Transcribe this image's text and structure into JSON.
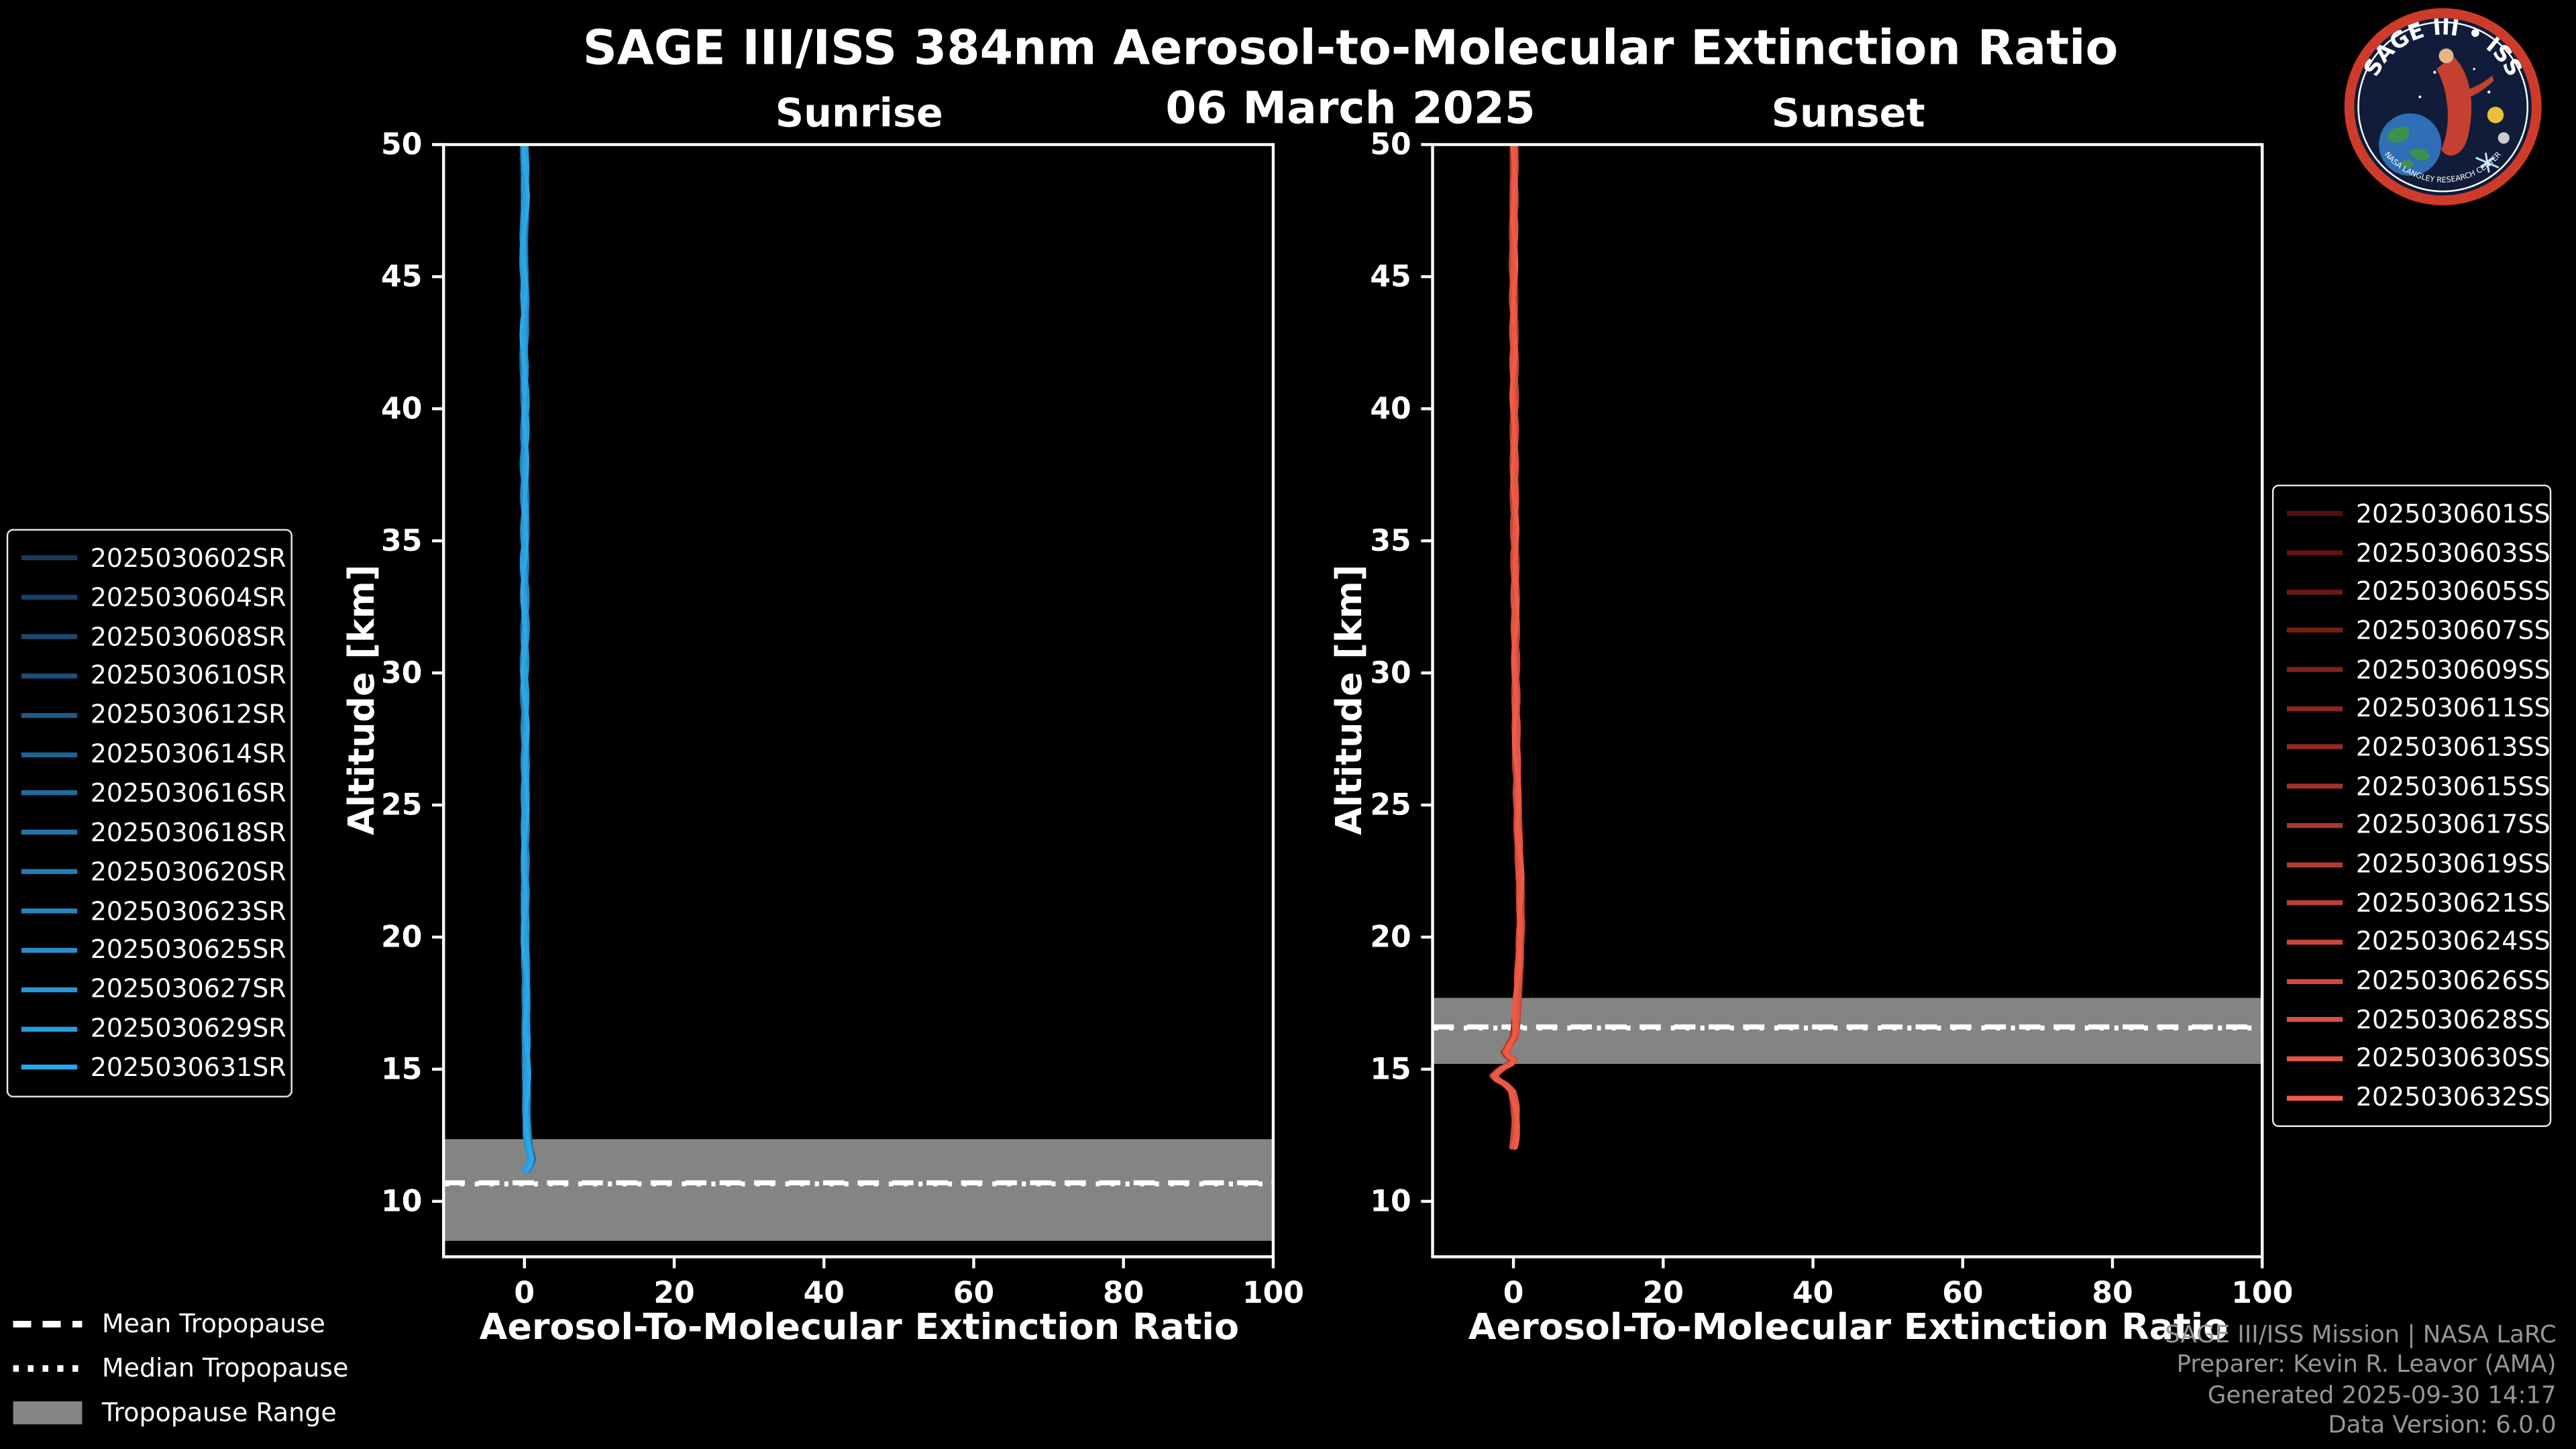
{
  "header": {
    "title": "SAGE III/ISS 384nm Aerosol-to-Molecular Extinction Ratio",
    "date": "06 March 2025"
  },
  "logo": {
    "top_text": "SAGE III • ISS",
    "ring_text": "NASA LANGLEY RESEARCH CENTER"
  },
  "colors": {
    "background": "#000000",
    "foreground": "#ffffff",
    "band": "#848484",
    "credits_text": "#969696",
    "sunrise_accent": "#2aa7e8",
    "sunset_accent": "#ef5a47"
  },
  "chart_data": [
    {
      "type": "line",
      "panel_title": "Sunrise",
      "xlabel": "Aerosol-To-Molecular Extinction Ratio",
      "ylabel": "Altitude [km]",
      "xlim": [
        -10.8,
        100
      ],
      "ylim": [
        7.9,
        50
      ],
      "xticks": [
        0,
        20,
        40,
        60,
        80,
        100
      ],
      "yticks": [
        10,
        15,
        20,
        25,
        30,
        35,
        40,
        45,
        50
      ],
      "grid": false,
      "legend_position": "left-outside",
      "series": [
        {
          "name": "2025030602SR",
          "color": "#17395c"
        },
        {
          "name": "2025030604SR",
          "color": "#194166"
        },
        {
          "name": "2025030608SR",
          "color": "#1a4a72"
        },
        {
          "name": "2025030610SR",
          "color": "#1b527c"
        },
        {
          "name": "2025030612SR",
          "color": "#1d5b87"
        },
        {
          "name": "2025030614SR",
          "color": "#1e6392"
        },
        {
          "name": "2025030616SR",
          "color": "#206c9d"
        },
        {
          "name": "2025030618SR",
          "color": "#2174a7"
        },
        {
          "name": "2025030620SR",
          "color": "#237db2"
        },
        {
          "name": "2025030623SR",
          "color": "#2485bd"
        },
        {
          "name": "2025030625SR",
          "color": "#268ec8"
        },
        {
          "name": "2025030627SR",
          "color": "#2796d2"
        },
        {
          "name": "2025030629SR",
          "color": "#289edd"
        },
        {
          "name": "2025030631SR",
          "color": "#2aa7e8"
        }
      ],
      "profile_note": "All sunrise events overlap near extinction ratio 0 from ~11.2 km to 50 km",
      "profile_keypoints": [
        [
          50,
          0
        ],
        [
          48,
          0.1
        ],
        [
          46,
          -0.1
        ],
        [
          44,
          0.1
        ],
        [
          42,
          -0.1
        ],
        [
          40,
          0.1
        ],
        [
          38,
          0
        ],
        [
          36,
          0.1
        ],
        [
          34,
          0
        ],
        [
          32,
          0.1
        ],
        [
          30,
          0
        ],
        [
          28,
          0.1
        ],
        [
          26,
          0.1
        ],
        [
          24,
          0.1
        ],
        [
          22,
          0.1
        ],
        [
          20,
          0.1
        ],
        [
          18,
          0.2
        ],
        [
          16,
          0.2
        ],
        [
          14,
          0.3
        ],
        [
          13,
          0.3
        ],
        [
          12.5,
          0.4
        ],
        [
          12,
          0.6
        ],
        [
          11.6,
          0.9
        ],
        [
          11.3,
          0.6
        ],
        [
          11.15,
          0.2
        ]
      ],
      "tropopause": {
        "mean_km": 10.7,
        "median_km": 10.66,
        "range_km": [
          8.5,
          12.35
        ]
      }
    },
    {
      "type": "line",
      "panel_title": "Sunset",
      "xlabel": "Aerosol-To-Molecular Extinction Ratio",
      "ylabel": "Altitude [km]",
      "xlim": [
        -10.8,
        100
      ],
      "ylim": [
        7.9,
        50
      ],
      "xticks": [
        0,
        20,
        40,
        60,
        80,
        100
      ],
      "yticks": [
        10,
        15,
        20,
        25,
        30,
        35,
        40,
        45,
        50
      ],
      "grid": false,
      "legend_position": "right-outside",
      "series": [
        {
          "name": "2025030601SS",
          "color": "#580f0f"
        },
        {
          "name": "2025030603SS",
          "color": "#621413"
        },
        {
          "name": "2025030605SS",
          "color": "#6c1916"
        },
        {
          "name": "2025030607SS",
          "color": "#761e1a"
        },
        {
          "name": "2025030609SS",
          "color": "#80231e"
        },
        {
          "name": "2025030611SS",
          "color": "#8a2822"
        },
        {
          "name": "2025030613SS",
          "color": "#942d25"
        },
        {
          "name": "2025030615SS",
          "color": "#9e3229"
        },
        {
          "name": "2025030617SS",
          "color": "#a8372d"
        },
        {
          "name": "2025030619SS",
          "color": "#b33c31"
        },
        {
          "name": "2025030621SS",
          "color": "#bd4134"
        },
        {
          "name": "2025030624SS",
          "color": "#c74638"
        },
        {
          "name": "2025030626SS",
          "color": "#d14b3c"
        },
        {
          "name": "2025030628SS",
          "color": "#db5040"
        },
        {
          "name": "2025030630SS",
          "color": "#e55543"
        },
        {
          "name": "2025030632SS",
          "color": "#ef5a47"
        }
      ],
      "profile_note": "All sunset events overlap near extinction ratio 0 from ~12 km to 50 km with a small negative excursion near 14.5-16 km",
      "profile_keypoints": [
        [
          50,
          0.1
        ],
        [
          46,
          0
        ],
        [
          42,
          0.1
        ],
        [
          38,
          0.1
        ],
        [
          34,
          0.2
        ],
        [
          30,
          0.3
        ],
        [
          27,
          0.4
        ],
        [
          24,
          0.6
        ],
        [
          22,
          0.9
        ],
        [
          20.5,
          1.0
        ],
        [
          19,
          0.8
        ],
        [
          18,
          0.6
        ],
        [
          17,
          0.4
        ],
        [
          16.3,
          0.2
        ],
        [
          15.9,
          -0.6
        ],
        [
          15.6,
          -1.2
        ],
        [
          15.3,
          0.3
        ],
        [
          15.0,
          -1.8
        ],
        [
          14.7,
          -2.8
        ],
        [
          14.45,
          -1.2
        ],
        [
          14.2,
          -0.2
        ],
        [
          13.6,
          0.2
        ],
        [
          13,
          0.3
        ],
        [
          12.4,
          0.2
        ],
        [
          12.0,
          0
        ]
      ],
      "tropopause": {
        "mean_km": 16.6,
        "median_km": 16.56,
        "range_km": [
          15.2,
          17.7
        ]
      }
    }
  ],
  "tropopause_legend": {
    "items": [
      {
        "label": "Mean Tropopause",
        "style": "dashed"
      },
      {
        "label": "Median Tropopause",
        "style": "dotted"
      },
      {
        "label": "Tropopause Range",
        "style": "patch",
        "color": "#848484"
      }
    ]
  },
  "credits": {
    "lines": [
      "SAGE III/ISS Mission | NASA LaRC",
      "Preparer: Kevin R. Leavor (AMA)",
      "Generated 2025-09-30 14:17",
      "Data Version: 6.0.0"
    ]
  }
}
